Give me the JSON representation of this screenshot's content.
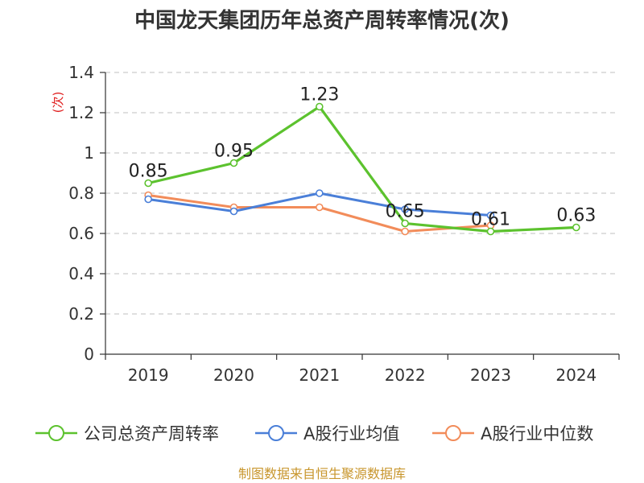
{
  "chart_data": {
    "type": "line",
    "title": "中国龙天集团历年总资产周转率情况(次)",
    "ylabel": "(次)",
    "xlabel": "",
    "categories": [
      "2019",
      "2020",
      "2021",
      "2022",
      "2023",
      "2024"
    ],
    "ylim": [
      0,
      1.4
    ],
    "yticks": [
      0,
      0.2,
      0.4,
      0.6,
      0.8,
      1,
      1.2,
      1.4
    ],
    "ytick_labels": [
      "0",
      "0.2",
      "0.4",
      "0.6",
      "0.8",
      "1",
      "1.2",
      "1.4"
    ],
    "grid": true,
    "legend_position": "bottom",
    "series": [
      {
        "name": "公司总资产周转率",
        "color": "#5cc22e",
        "values": [
          0.85,
          0.95,
          1.23,
          0.65,
          0.61,
          0.63
        ],
        "labels": [
          "0.85",
          "0.95",
          "1.23",
          "0.65",
          "0.61",
          "0.63"
        ],
        "show_labels": true
      },
      {
        "name": "A股行业均值",
        "color": "#4a7fd8",
        "values": [
          0.77,
          0.71,
          0.8,
          0.72,
          0.69,
          null
        ],
        "show_labels": false
      },
      {
        "name": "A股行业中位数",
        "color": "#f28c5a",
        "values": [
          0.79,
          0.73,
          0.73,
          0.61,
          0.64,
          null
        ],
        "show_labels": false
      }
    ]
  },
  "source_text": "制图数据来自恒生聚源数据库"
}
